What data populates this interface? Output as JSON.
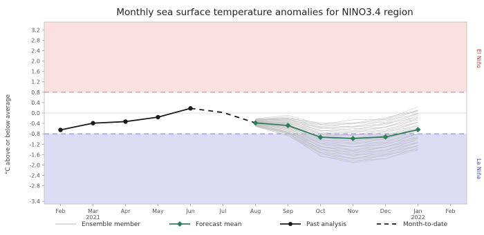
{
  "chart_data": {
    "type": "line",
    "title": "Monthly sea surface temperature anomalies for NINO3.4 region",
    "ylabel": "°C above or below average",
    "ylim": [
      -3.5,
      3.5
    ],
    "yticks": [
      "-3.4",
      "-2.8",
      "-2.4",
      "-2.0",
      "-1.6",
      "-1.2",
      "-0.8",
      "-0.4",
      "0.0",
      "0.4",
      "0.8",
      "1.2",
      "1.6",
      "2.0",
      "2.4",
      "2.8",
      "3.2"
    ],
    "ytick_values": [
      -3.4,
      -2.8,
      -2.4,
      -2.0,
      -1.6,
      -1.2,
      -0.8,
      -0.4,
      0.0,
      0.4,
      0.8,
      1.2,
      1.6,
      2.0,
      2.4,
      2.8,
      3.2
    ],
    "categories": [
      "Feb",
      "Mar\n2021",
      "Apr",
      "May",
      "Jun",
      "Jul",
      "Aug",
      "Sep",
      "Oct",
      "Nov",
      "Dec",
      "Jan\n2022",
      "Feb"
    ],
    "thresholds": {
      "el_nino": 0.8,
      "la_nina": -0.8
    },
    "side_labels": {
      "el_nino": "El Niño",
      "la_nina": "La Niña"
    },
    "shading": {
      "el_nino_color": "#fbe0e0",
      "la_nina_color": "#dcdcf5"
    },
    "series": [
      {
        "name": "Past analysis",
        "color": "#1a1a1a",
        "x": [
          0,
          1,
          2,
          3,
          4
        ],
        "values": [
          -0.65,
          -0.39,
          -0.33,
          -0.16,
          0.18
        ]
      },
      {
        "name": "Month-to-date",
        "color": "#1a1a1a",
        "style": "dashed",
        "x": [
          4,
          5,
          6
        ],
        "values": [
          0.18,
          0.02,
          -0.38
        ]
      },
      {
        "name": "Forecast mean",
        "color": "#2e7d5b",
        "x": [
          6,
          7,
          8,
          9,
          10,
          11
        ],
        "values": [
          -0.38,
          -0.48,
          -0.93,
          -0.98,
          -0.92,
          -0.64
        ]
      }
    ],
    "ensemble_spread": {
      "x": [
        6,
        7,
        8,
        9,
        10,
        11
      ],
      "upper": [
        -0.22,
        -0.15,
        -0.38,
        -0.32,
        -0.18,
        0.18
      ],
      "lower": [
        -0.52,
        -0.85,
        -1.65,
        -1.92,
        -1.75,
        -1.42
      ]
    },
    "legend": {
      "placement": "bottom",
      "items": [
        "Ensemble member",
        "Forecast mean",
        "Past analysis",
        "Month-to-date"
      ]
    }
  }
}
